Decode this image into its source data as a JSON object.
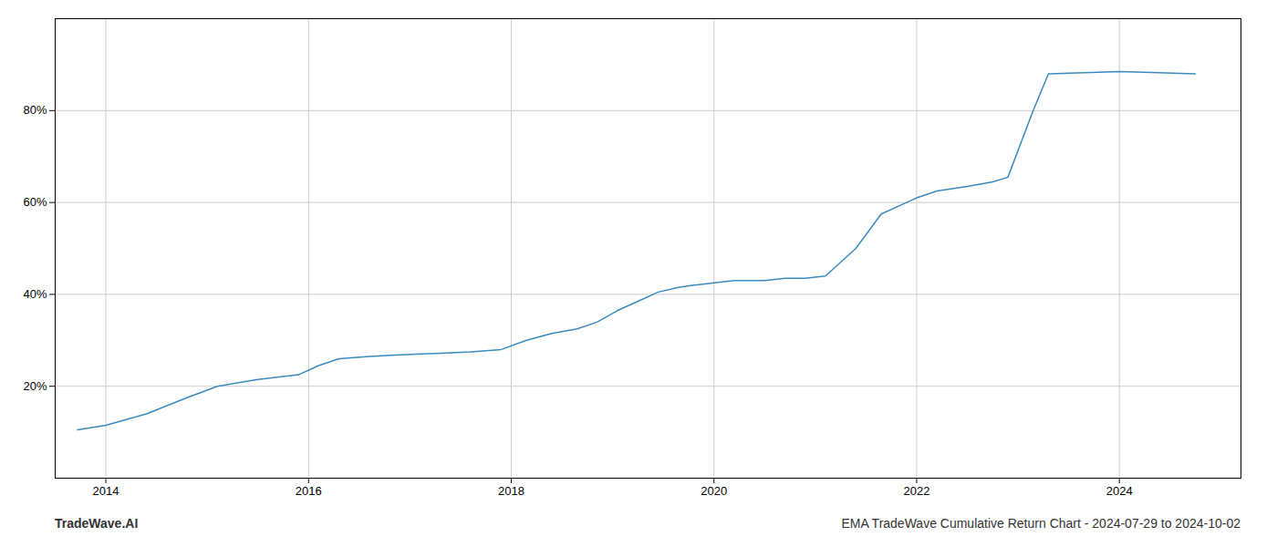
{
  "chart_data": {
    "type": "line",
    "title": "EMA TradeWave Cumulative Return Chart - 2024-07-29 to 2024-10-02",
    "annotations": [
      {
        "text": "TradeWave.AI"
      }
    ],
    "x": [
      2013.72,
      2014.0,
      2014.4,
      2014.8,
      2015.1,
      2015.5,
      2015.9,
      2016.1,
      2016.3,
      2016.6,
      2016.85,
      2017.05,
      2017.3,
      2017.6,
      2017.9,
      2018.15,
      2018.4,
      2018.65,
      2018.85,
      2019.05,
      2019.25,
      2019.45,
      2019.65,
      2019.8,
      2020.0,
      2020.2,
      2020.5,
      2020.7,
      2020.9,
      2021.1,
      2021.4,
      2021.65,
      2021.85,
      2022.0,
      2022.2,
      2022.5,
      2022.75,
      2022.9,
      2023.15,
      2023.3,
      2024.0,
      2024.75
    ],
    "values": [
      10.5,
      11.5,
      14.0,
      17.5,
      20.0,
      21.5,
      22.5,
      24.5,
      26.0,
      26.5,
      26.8,
      27.0,
      27.2,
      27.5,
      28.0,
      30.0,
      31.5,
      32.5,
      34.0,
      36.5,
      38.5,
      40.5,
      41.5,
      42.0,
      42.5,
      43.0,
      43.0,
      43.5,
      43.5,
      44.0,
      50.0,
      57.5,
      59.5,
      61.0,
      62.5,
      63.5,
      64.5,
      65.5,
      80.0,
      88.0,
      88.5,
      88.0
    ],
    "color": "#3a8bbf",
    "xlim": [
      2013.5,
      2025.2
    ],
    "ylim": [
      0,
      100
    ],
    "xticks": [
      2014,
      2016,
      2018,
      2020,
      2022,
      2024
    ],
    "yticks": [
      {
        "value": 20,
        "label": "20%"
      },
      {
        "value": 40,
        "label": "40%"
      },
      {
        "value": 60,
        "label": "60%"
      },
      {
        "value": 80,
        "label": "80%"
      }
    ],
    "grid": true
  }
}
